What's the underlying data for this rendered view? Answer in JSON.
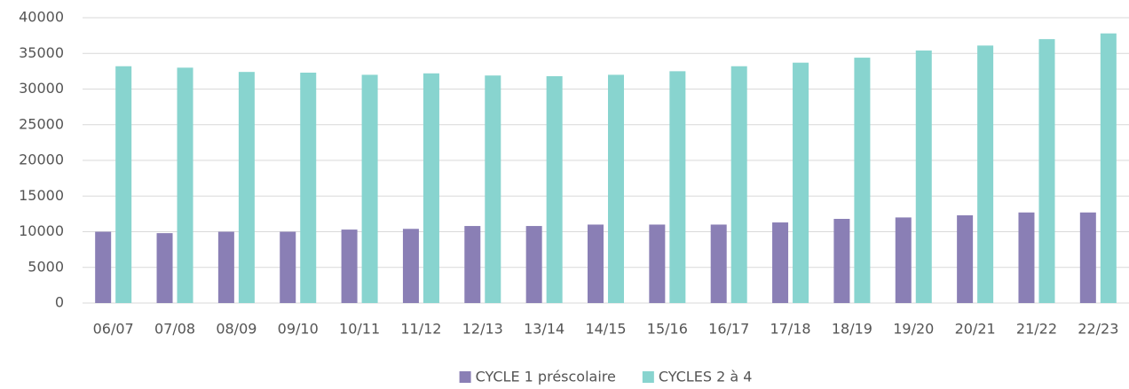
{
  "chart_data": {
    "type": "bar",
    "categories": [
      "06/07",
      "07/08",
      "08/09",
      "09/10",
      "10/11",
      "11/12",
      "12/13",
      "13/14",
      "14/15",
      "15/16",
      "16/17",
      "17/18",
      "18/19",
      "19/20",
      "20/21",
      "21/22",
      "22/23"
    ],
    "series": [
      {
        "name": "CYCLE 1 préscolaire",
        "color": "#8a7fb5",
        "values": [
          10000,
          9800,
          10000,
          10000,
          10300,
          10400,
          10800,
          10800,
          11000,
          11000,
          11000,
          11300,
          11800,
          12000,
          12300,
          12700,
          12700
        ]
      },
      {
        "name": "CYCLES 2 à 4",
        "color": "#88d4cf",
        "values": [
          33200,
          33000,
          32400,
          32300,
          32000,
          32200,
          31900,
          31800,
          32000,
          32500,
          33200,
          33700,
          34400,
          35400,
          36100,
          37000,
          37800
        ]
      }
    ],
    "ylim": [
      0,
      40000
    ],
    "yticks": [
      0,
      5000,
      10000,
      15000,
      20000,
      25000,
      30000,
      35000,
      40000
    ],
    "grid": true,
    "legend": "bottom"
  }
}
